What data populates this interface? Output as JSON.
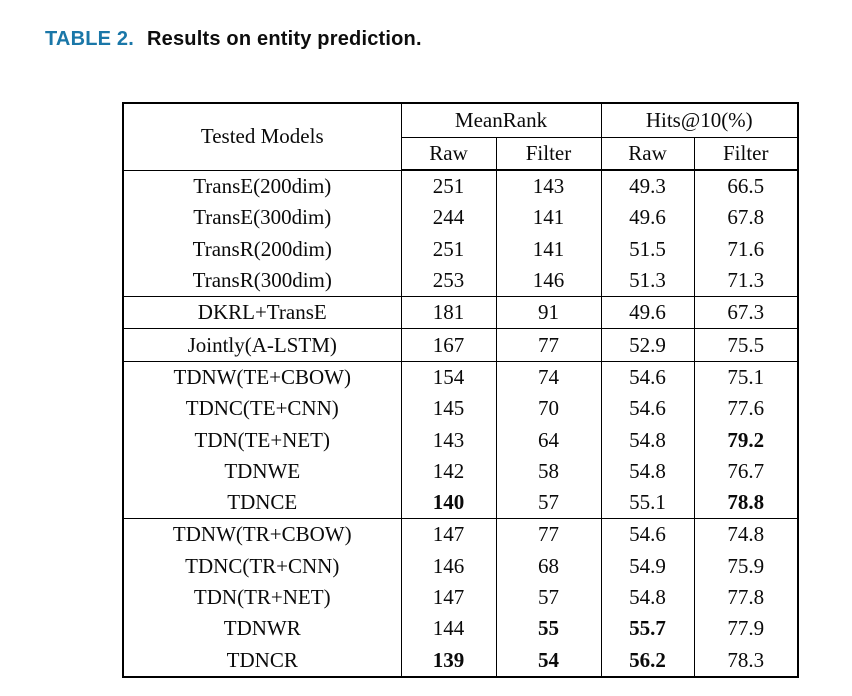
{
  "caption": {
    "label": "TABLE 2.",
    "title": "Results on entity prediction."
  },
  "colors": {
    "caption_label": "#1a77a8",
    "text": "#0a0a0a",
    "border": "#000000",
    "background": "#ffffff"
  },
  "table": {
    "column_headers": {
      "tested_models": "Tested Models",
      "mean_rank": "MeanRank",
      "hits_at_10": "Hits@10(%)",
      "sub": [
        "Raw",
        "Filter",
        "Raw",
        "Filter"
      ]
    },
    "rows": [
      {
        "model": "TransE(200dim)",
        "values": [
          "251",
          "143",
          "49.3",
          "66.5"
        ],
        "bold": [],
        "group_start": false
      },
      {
        "model": "TransE(300dim)",
        "values": [
          "244",
          "141",
          "49.6",
          "67.8"
        ],
        "bold": [],
        "group_start": false
      },
      {
        "model": "TransR(200dim)",
        "values": [
          "251",
          "141",
          "51.5",
          "71.6"
        ],
        "bold": [],
        "group_start": false
      },
      {
        "model": "TransR(300dim)",
        "values": [
          "253",
          "146",
          "51.3",
          "71.3"
        ],
        "bold": [],
        "group_start": false
      },
      {
        "model": "DKRL+TransE",
        "values": [
          "181",
          "91",
          "49.6",
          "67.3"
        ],
        "bold": [],
        "group_start": true
      },
      {
        "model": "Jointly(A-LSTM)",
        "values": [
          "167",
          "77",
          "52.9",
          "75.5"
        ],
        "bold": [],
        "group_start": true
      },
      {
        "model": "TDNW(TE+CBOW)",
        "values": [
          "154",
          "74",
          "54.6",
          "75.1"
        ],
        "bold": [],
        "group_start": true
      },
      {
        "model": "TDNC(TE+CNN)",
        "values": [
          "145",
          "70",
          "54.6",
          "77.6"
        ],
        "bold": [],
        "group_start": false
      },
      {
        "model": "TDN(TE+NET)",
        "values": [
          "143",
          "64",
          "54.8",
          "79.2"
        ],
        "bold": [
          3
        ],
        "group_start": false
      },
      {
        "model": "TDNWE",
        "values": [
          "142",
          "58",
          "54.8",
          "76.7"
        ],
        "bold": [],
        "group_start": false
      },
      {
        "model": "TDNCE",
        "values": [
          "140",
          "57",
          "55.1",
          "78.8"
        ],
        "bold": [
          0,
          3
        ],
        "group_start": false
      },
      {
        "model": "TDNW(TR+CBOW)",
        "values": [
          "147",
          "77",
          "54.6",
          "74.8"
        ],
        "bold": [],
        "group_start": true
      },
      {
        "model": "TDNC(TR+CNN)",
        "values": [
          "146",
          "68",
          "54.9",
          "75.9"
        ],
        "bold": [],
        "group_start": false
      },
      {
        "model": "TDN(TR+NET)",
        "values": [
          "147",
          "57",
          "54.8",
          "77.8"
        ],
        "bold": [],
        "group_start": false
      },
      {
        "model": "TDNWR",
        "values": [
          "144",
          "55",
          "55.7",
          "77.9"
        ],
        "bold": [
          1,
          2
        ],
        "group_start": false
      },
      {
        "model": "TDNCR",
        "values": [
          "139",
          "54",
          "56.2",
          "78.3"
        ],
        "bold": [
          0,
          1,
          2
        ],
        "group_start": false
      }
    ]
  }
}
